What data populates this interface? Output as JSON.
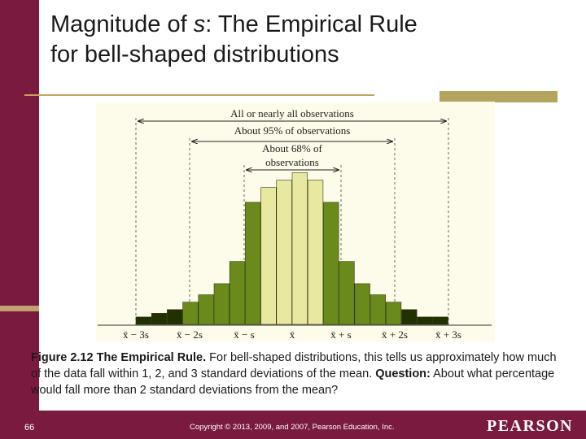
{
  "title": {
    "prefix": "Magnitude of ",
    "var": "s",
    "suffix": ": The Empirical Rule",
    "line2": "for bell-shaped distributions"
  },
  "figure": {
    "labels": {
      "all": "All or nearly all observations",
      "p95": "About 95% of observations",
      "p68a": "About 68% of",
      "p68b": "observations"
    },
    "ticks": [
      "x̄ − 3s",
      "x̄ − 2s",
      "x̄ − s",
      "x̄",
      "x̄ + s",
      "x̄ + 2s",
      "x̄ + 3s"
    ],
    "colors": {
      "within1": "#e8e8a0",
      "within2": "#6b8a1c",
      "beyond": "#233000"
    }
  },
  "chart_data": {
    "type": "bar",
    "values": [
      1,
      1.5,
      2,
      3,
      4,
      5.5,
      8.5,
      16.5,
      18.5,
      19.5,
      20.5,
      19.5,
      16.5,
      8.5,
      5.5,
      4,
      3,
      2,
      1,
      1
    ]
  },
  "caption": {
    "fig_bold": "Figure 2.12 The Empirical Rule.",
    "fig_text": " For bell-shaped distributions, this tells us approximately how much of the data fall within 1, 2, and 3 standard deviations of the mean. ",
    "question_bold": "Question:",
    "question_text": " About what percentage would fall more than 2 standard deviations from the mean?"
  },
  "footer": {
    "page": "66",
    "copyright": "Copyright © 2013, 2009, and 2007, Pearson Education, Inc.",
    "brand": "PEARSON"
  }
}
